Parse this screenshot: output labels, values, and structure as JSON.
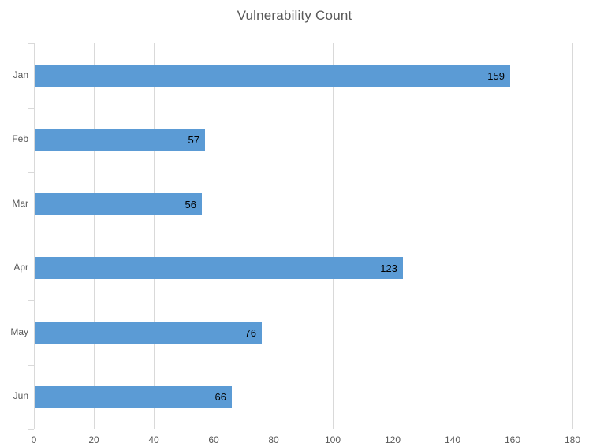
{
  "chart_data": {
    "type": "bar",
    "orientation": "horizontal",
    "title": "Vulnerability Count",
    "categories": [
      "Jan",
      "Feb",
      "Mar",
      "Apr",
      "May",
      "Jun"
    ],
    "values": [
      159,
      57,
      56,
      123,
      76,
      66
    ],
    "xlabel": "",
    "ylabel": "",
    "xlim": [
      0,
      180
    ],
    "xticks": [
      0,
      20,
      40,
      60,
      80,
      100,
      120,
      140,
      160,
      180
    ],
    "grid": true,
    "legend": false,
    "data_labels": true,
    "colors": {
      "bar": "#5B9BD5",
      "gridline": "#D9D9D9",
      "axis_line": "#D9D9D9",
      "tick_label": "#595959",
      "title": "#595959",
      "data_label": "#000000",
      "background": "#FFFFFF"
    }
  }
}
